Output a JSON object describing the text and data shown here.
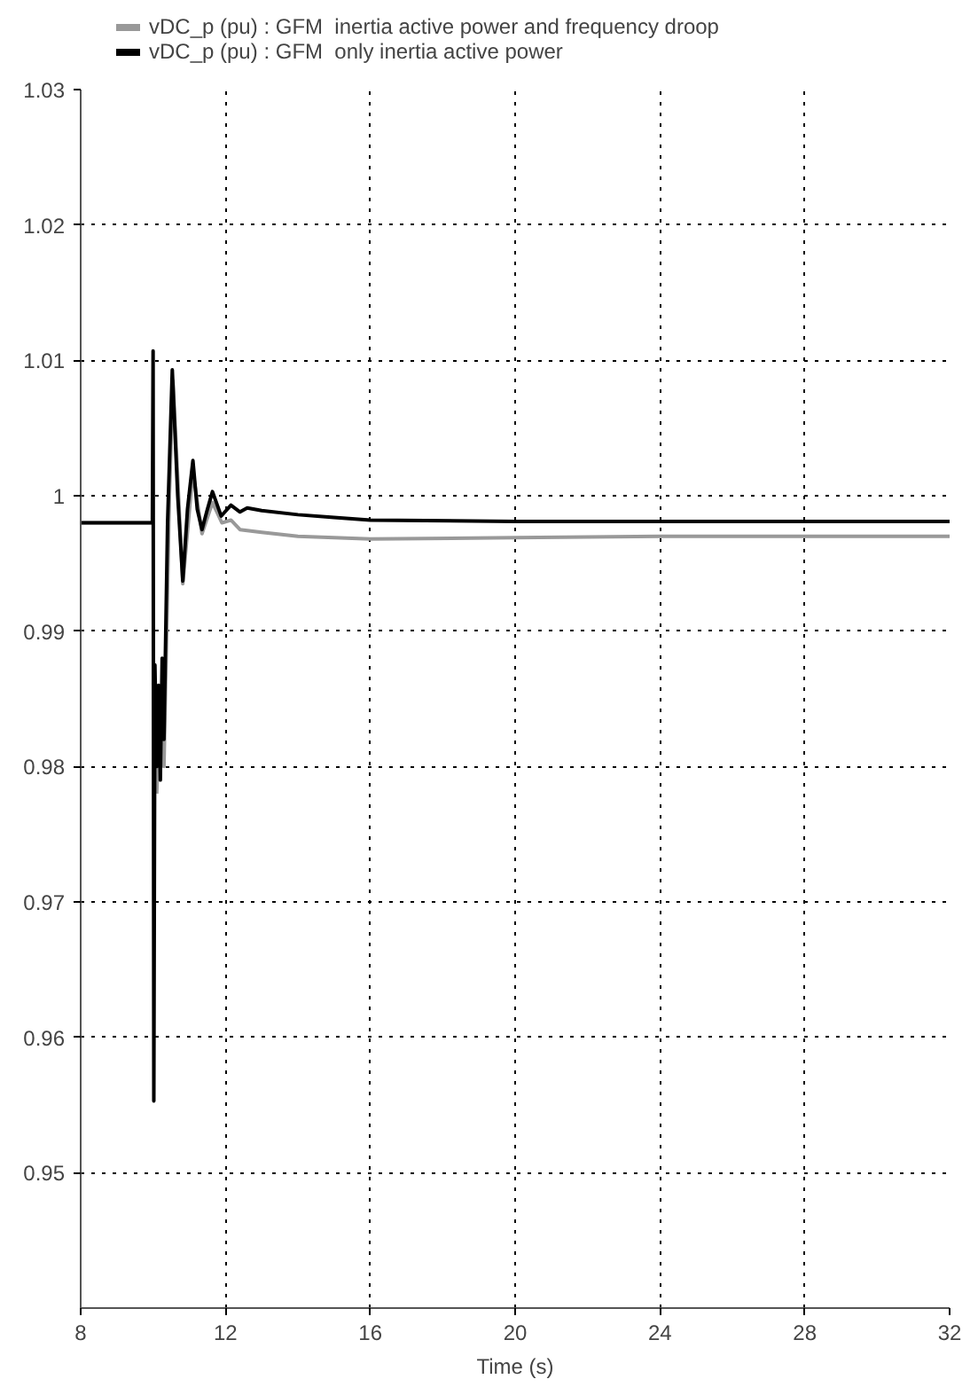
{
  "chart_data": {
    "type": "line",
    "xlabel": "Time (s)",
    "xlim": [
      8,
      32
    ],
    "xticks": [
      8,
      12,
      16,
      20,
      24,
      28,
      32
    ],
    "ylim": [
      0.94,
      1.03
    ],
    "yticks": [
      0.95,
      0.96,
      0.97,
      0.98,
      0.99,
      1,
      1.01,
      1.02,
      1.03
    ],
    "grid": true,
    "legend": "top left",
    "line_style": "solid",
    "marker": "none",
    "series": [
      {
        "name": "vDC_p (pu) : GFM  inertia active power and frequency droop",
        "color": "#999999",
        "x": [
          8,
          9.98,
          10.0,
          10.02,
          10.1,
          10.2,
          10.3,
          10.45,
          10.55,
          10.82,
          11.1,
          11.35,
          11.64,
          11.9,
          12.15,
          12.4,
          13,
          14,
          16,
          20,
          24,
          28,
          32
        ],
        "values": [
          0.998,
          0.998,
          null,
          null,
          0.978,
          0.985,
          0.98,
          1.0,
          1.0085,
          0.9935,
          1.0018,
          0.9972,
          0.9995,
          0.998,
          0.9982,
          0.9975,
          0.9973,
          0.997,
          0.9968,
          0.9969,
          0.997,
          0.997,
          0.997
        ]
      },
      {
        "name": "vDC_p (pu) : GFM  only inertia active power",
        "color": "#000000",
        "x": [
          8,
          9.98,
          10.0,
          10.02,
          10.05,
          10.1,
          10.15,
          10.2,
          10.25,
          10.3,
          10.4,
          10.53,
          10.68,
          10.82,
          10.95,
          11.1,
          11.22,
          11.35,
          11.5,
          11.64,
          11.88,
          12.15,
          12.4,
          12.6,
          13,
          14,
          15,
          16,
          20,
          24,
          28,
          32
        ],
        "values": [
          0.998,
          0.998,
          1.0107,
          0.9553,
          0.9875,
          0.98,
          0.986,
          0.979,
          0.988,
          0.982,
          0.998,
          1.0093,
          1.0,
          0.9937,
          0.999,
          1.0026,
          0.999,
          0.9975,
          0.999,
          1.0003,
          0.9985,
          0.9993,
          0.9988,
          0.9991,
          0.9989,
          0.9986,
          0.9984,
          0.9982,
          0.9981,
          0.9981,
          0.9981,
          0.9981
        ]
      }
    ]
  }
}
